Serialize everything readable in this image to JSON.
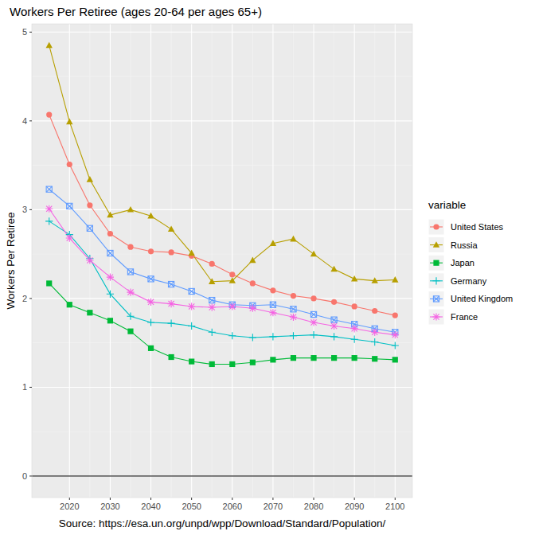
{
  "chart_data": {
    "type": "line",
    "title": "Workers Per Retiree (ages 20-64 per ages 65+)",
    "y_label": "Workers Per Retiree",
    "x_label": "Source: https://esa.un.org/unpd/wpp/Download/Standard/Population/",
    "legend_title": "variable",
    "legend": "right",
    "grid": true,
    "x": [
      2015,
      2020,
      2025,
      2030,
      2035,
      2040,
      2045,
      2050,
      2055,
      2060,
      2065,
      2070,
      2075,
      2080,
      2085,
      2090,
      2095,
      2100
    ],
    "xlim": [
      2010.75,
      2104.25
    ],
    "xticks": [
      2020,
      2030,
      2040,
      2050,
      2060,
      2070,
      2080,
      2090,
      2100
    ],
    "ylim": [
      -0.2425,
      5.0925
    ],
    "yticks": [
      0,
      1,
      2,
      3,
      4,
      5
    ],
    "series": [
      {
        "name": "United States",
        "color": "#F8766D",
        "marker": "circle",
        "values": [
          4.07,
          3.51,
          3.05,
          2.73,
          2.58,
          2.53,
          2.52,
          2.48,
          2.39,
          2.27,
          2.17,
          2.09,
          2.03,
          2.0,
          1.96,
          1.91,
          1.86,
          1.81
        ]
      },
      {
        "name": "Russia",
        "color": "#B79F00",
        "marker": "triangle",
        "values": [
          4.85,
          3.99,
          3.34,
          2.94,
          3.0,
          2.93,
          2.78,
          2.51,
          2.19,
          2.2,
          2.43,
          2.62,
          2.67,
          2.5,
          2.33,
          2.22,
          2.2,
          2.21
        ]
      },
      {
        "name": "Japan",
        "color": "#00BA38",
        "marker": "square",
        "values": [
          2.17,
          1.93,
          1.84,
          1.75,
          1.63,
          1.44,
          1.34,
          1.29,
          1.26,
          1.26,
          1.28,
          1.31,
          1.33,
          1.33,
          1.33,
          1.33,
          1.32,
          1.31
        ]
      },
      {
        "name": "Germany",
        "color": "#00BFC4",
        "marker": "plus",
        "values": [
          2.87,
          2.72,
          2.45,
          2.05,
          1.8,
          1.73,
          1.72,
          1.69,
          1.62,
          1.58,
          1.56,
          1.57,
          1.58,
          1.59,
          1.57,
          1.54,
          1.51,
          1.47
        ]
      },
      {
        "name": "United Kingdom",
        "color": "#619CFF",
        "marker": "square-x",
        "values": [
          3.23,
          3.04,
          2.79,
          2.51,
          2.3,
          2.22,
          2.16,
          2.08,
          1.98,
          1.93,
          1.92,
          1.93,
          1.88,
          1.82,
          1.76,
          1.71,
          1.66,
          1.62
        ]
      },
      {
        "name": "France",
        "color": "#F564E3",
        "marker": "asterisk",
        "values": [
          3.01,
          2.68,
          2.43,
          2.24,
          2.07,
          1.96,
          1.94,
          1.91,
          1.9,
          1.91,
          1.89,
          1.84,
          1.79,
          1.73,
          1.69,
          1.66,
          1.62,
          1.59
        ]
      }
    ]
  }
}
